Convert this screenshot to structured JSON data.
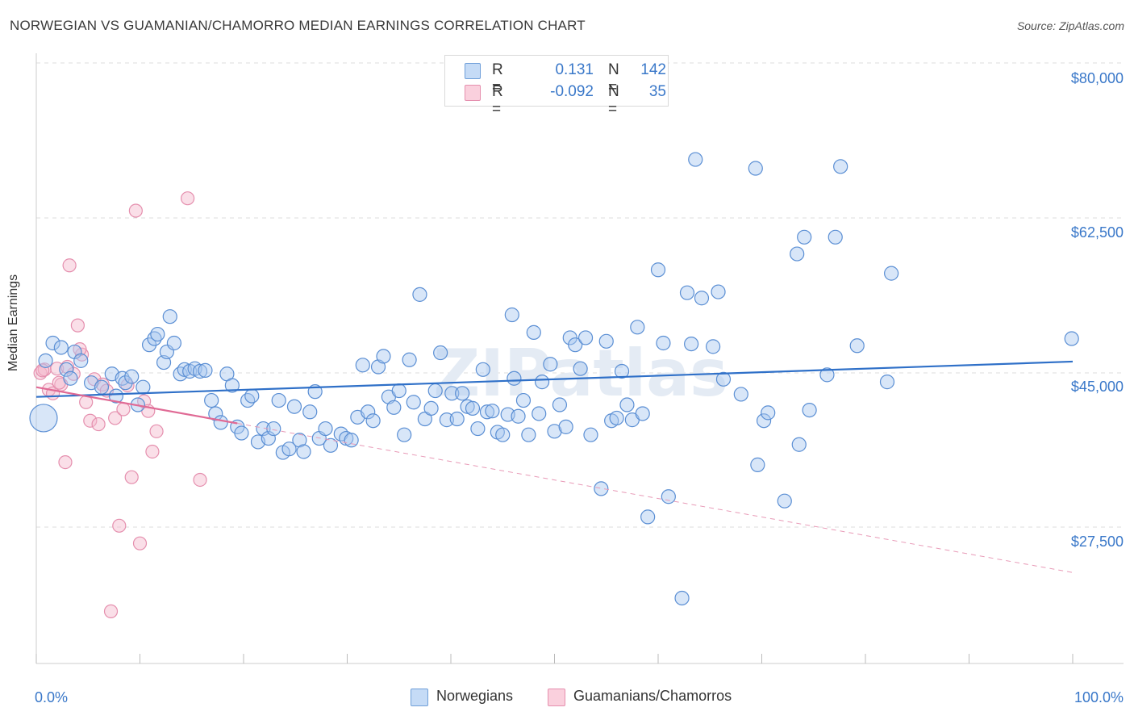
{
  "title": "NORWEGIAN VS GUAMANIAN/CHAMORRO MEDIAN EARNINGS CORRELATION CHART",
  "source": "Source: ZipAtlas.com",
  "watermark": "ZIPatlas",
  "legend_top": {
    "rows": [
      {
        "r_label": "R =",
        "r_value": "0.131",
        "n_label": "N =",
        "n_value": "142",
        "color": "#a9c8f0"
      },
      {
        "r_label": "R =",
        "r_value": "-0.092",
        "n_label": "N =",
        "n_value": "35",
        "color": "#f5b8cb"
      }
    ]
  },
  "bottom_legend": {
    "norwegians": "Norwegians",
    "guamanians": "Guamanians/Chamorros"
  },
  "chart_data": {
    "type": "scatter",
    "ylabel": "Median Earnings",
    "x_tick_labels": {
      "left": "0.0%",
      "right": "100.0%"
    },
    "xlim": [
      0,
      100
    ],
    "ylim": [
      8000,
      84000
    ],
    "y_ticks": [
      {
        "value": 80000,
        "label": "$80,000"
      },
      {
        "value": 62500,
        "label": "$62,500"
      },
      {
        "value": 45000,
        "label": "$45,000"
      },
      {
        "value": 27500,
        "label": "$27,500"
      }
    ],
    "colors": {
      "norwegians": "#3a78c9",
      "norwegians_fill": "#a9c8f0",
      "guamanians": "#e06a95",
      "guamanians_fill": "#f5b8cb"
    },
    "series": [
      {
        "name": "Norwegians",
        "trend": {
          "x0": 0,
          "y0": 43900,
          "x1": 100,
          "y1": 47900
        },
        "points": [
          [
            0.7,
            41500
          ],
          [
            0.9,
            48000
          ],
          [
            1.6,
            50000
          ],
          [
            2.4,
            49500
          ],
          [
            2.9,
            47000
          ],
          [
            3.7,
            49000
          ],
          [
            4.3,
            48000
          ],
          [
            3.3,
            46000
          ],
          [
            5.3,
            45500
          ],
          [
            6.3,
            45000
          ],
          [
            7.3,
            46500
          ],
          [
            7.7,
            44000
          ],
          [
            8.3,
            46000
          ],
          [
            8.6,
            45500
          ],
          [
            9.2,
            46200
          ],
          [
            9.8,
            43000
          ],
          [
            10.3,
            45000
          ],
          [
            10.9,
            49800
          ],
          [
            11.4,
            50500
          ],
          [
            11.7,
            51000
          ],
          [
            12.3,
            47800
          ],
          [
            12.6,
            49000
          ],
          [
            12.9,
            53000
          ],
          [
            13.3,
            50000
          ],
          [
            13.9,
            46500
          ],
          [
            14.3,
            47000
          ],
          [
            14.8,
            46800
          ],
          [
            15.3,
            47100
          ],
          [
            15.8,
            46800
          ],
          [
            16.3,
            46900
          ],
          [
            16.9,
            43500
          ],
          [
            17.3,
            42000
          ],
          [
            17.8,
            41000
          ],
          [
            18.4,
            46500
          ],
          [
            18.9,
            45200
          ],
          [
            19.4,
            40500
          ],
          [
            19.8,
            39800
          ],
          [
            20.4,
            43500
          ],
          [
            20.8,
            44000
          ],
          [
            21.4,
            38800
          ],
          [
            21.9,
            40300
          ],
          [
            22.4,
            39200
          ],
          [
            22.9,
            40300
          ],
          [
            23.4,
            43500
          ],
          [
            23.8,
            37600
          ],
          [
            24.4,
            38000
          ],
          [
            24.9,
            42800
          ],
          [
            25.4,
            39000
          ],
          [
            25.8,
            37700
          ],
          [
            26.4,
            42200
          ],
          [
            26.9,
            44500
          ],
          [
            27.3,
            39200
          ],
          [
            27.9,
            40300
          ],
          [
            28.4,
            38400
          ],
          [
            29.4,
            39700
          ],
          [
            29.9,
            39200
          ],
          [
            30.4,
            39000
          ],
          [
            31.0,
            41600
          ],
          [
            31.5,
            47500
          ],
          [
            32.0,
            42200
          ],
          [
            32.5,
            41200
          ],
          [
            33.0,
            47300
          ],
          [
            33.5,
            48500
          ],
          [
            34.0,
            43900
          ],
          [
            34.5,
            42700
          ],
          [
            35.0,
            44600
          ],
          [
            35.5,
            39600
          ],
          [
            36.0,
            48100
          ],
          [
            36.4,
            43300
          ],
          [
            37.0,
            55500
          ],
          [
            37.5,
            41400
          ],
          [
            38.1,
            42600
          ],
          [
            38.5,
            44600
          ],
          [
            39.0,
            48900
          ],
          [
            39.6,
            41300
          ],
          [
            40.1,
            44300
          ],
          [
            40.6,
            41400
          ],
          [
            41.1,
            44300
          ],
          [
            41.6,
            42800
          ],
          [
            42.1,
            42600
          ],
          [
            42.6,
            40300
          ],
          [
            43.1,
            47000
          ],
          [
            43.5,
            42200
          ],
          [
            44.0,
            42300
          ],
          [
            44.5,
            39900
          ],
          [
            45.0,
            39600
          ],
          [
            45.5,
            41900
          ],
          [
            45.9,
            53200
          ],
          [
            46.1,
            46000
          ],
          [
            46.5,
            41700
          ],
          [
            47.0,
            43500
          ],
          [
            47.5,
            39600
          ],
          [
            48.0,
            51200
          ],
          [
            48.5,
            42000
          ],
          [
            48.8,
            45600
          ],
          [
            49.6,
            47600
          ],
          [
            50.0,
            40000
          ],
          [
            50.5,
            43000
          ],
          [
            51.1,
            40500
          ],
          [
            51.5,
            50600
          ],
          [
            52.0,
            49800
          ],
          [
            52.5,
            47100
          ],
          [
            53.0,
            50600
          ],
          [
            53.5,
            39600
          ],
          [
            54.5,
            33500
          ],
          [
            55.0,
            50200
          ],
          [
            55.5,
            41200
          ],
          [
            56.0,
            41500
          ],
          [
            56.5,
            46800
          ],
          [
            57.0,
            43000
          ],
          [
            57.5,
            41300
          ],
          [
            58.0,
            51800
          ],
          [
            58.5,
            42000
          ],
          [
            59.0,
            30300
          ],
          [
            60.0,
            58300
          ],
          [
            60.5,
            50000
          ],
          [
            61.0,
            32600
          ],
          [
            62.3,
            21100
          ],
          [
            62.8,
            55700
          ],
          [
            63.2,
            49900
          ],
          [
            63.6,
            70800
          ],
          [
            64.2,
            55100
          ],
          [
            65.3,
            49600
          ],
          [
            65.8,
            55800
          ],
          [
            66.3,
            45900
          ],
          [
            68.0,
            44200
          ],
          [
            69.4,
            69800
          ],
          [
            69.6,
            36200
          ],
          [
            70.2,
            41200
          ],
          [
            70.6,
            42100
          ],
          [
            72.2,
            32100
          ],
          [
            73.4,
            60100
          ],
          [
            73.6,
            38500
          ],
          [
            74.1,
            62000
          ],
          [
            74.6,
            42400
          ],
          [
            76.3,
            46400
          ],
          [
            77.1,
            62000
          ],
          [
            77.6,
            70000
          ],
          [
            79.2,
            49700
          ],
          [
            82.1,
            45600
          ],
          [
            82.5,
            57900
          ],
          [
            99.9,
            50500
          ]
        ]
      },
      {
        "name": "Guamanians/Chamorros",
        "trend": {
          "x0": 0,
          "y0": 45000,
          "x1": 19.4,
          "y1": 40900,
          "dash_to_x": 100,
          "dash_to_y": 24000
        },
        "points": [
          [
            0.4,
            46600
          ],
          [
            0.8,
            47000
          ],
          [
            1.2,
            44700
          ],
          [
            1.6,
            44300
          ],
          [
            2.0,
            47100
          ],
          [
            2.4,
            45300
          ],
          [
            2.8,
            36500
          ],
          [
            3.2,
            58800
          ],
          [
            3.6,
            46500
          ],
          [
            4.0,
            52000
          ],
          [
            4.4,
            48700
          ],
          [
            4.8,
            43300
          ],
          [
            5.2,
            41200
          ],
          [
            5.6,
            45900
          ],
          [
            6.0,
            40800
          ],
          [
            6.4,
            45300
          ],
          [
            6.8,
            44600
          ],
          [
            7.2,
            19600
          ],
          [
            7.6,
            41500
          ],
          [
            8.0,
            29300
          ],
          [
            8.4,
            42500
          ],
          [
            8.8,
            45200
          ],
          [
            9.2,
            34800
          ],
          [
            9.6,
            65000
          ],
          [
            10.0,
            27300
          ],
          [
            10.4,
            43400
          ],
          [
            10.8,
            42300
          ],
          [
            11.2,
            37700
          ],
          [
            11.6,
            40000
          ],
          [
            14.6,
            66400
          ],
          [
            15.8,
            34500
          ],
          [
            4.2,
            49300
          ],
          [
            2.2,
            45500
          ],
          [
            3.0,
            47300
          ],
          [
            0.6,
            46900
          ]
        ]
      }
    ]
  }
}
